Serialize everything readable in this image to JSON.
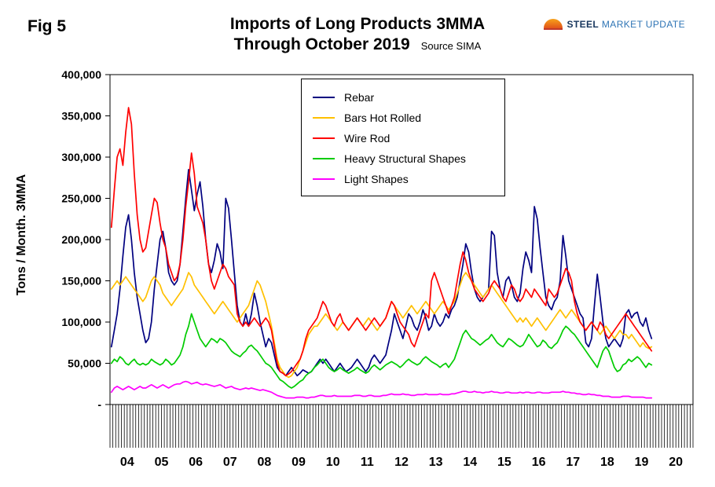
{
  "figure_label": "Fig 5",
  "header": {
    "title_line1": "Imports of Long Products 3MMA",
    "title_line2": "Through October 2019",
    "source": "Source SIMA"
  },
  "logo": {
    "steel": "STEEL",
    "rest": "MARKET UPDATE",
    "arc_color": "#e2541a"
  },
  "chart_data": {
    "type": "line",
    "title": "Imports of Long Products 3MMA Through October 2019",
    "ylabel": "Tons / Month. 3MMA",
    "xlabel": "",
    "ylim": [
      0,
      400000
    ],
    "y_tick_step": 50000,
    "y_tick_labels": [
      "-",
      "50,000",
      "100,000",
      "150,000",
      "200,000",
      "250,000",
      "300,000",
      "350,000",
      "400,000"
    ],
    "x_year_labels": [
      "04",
      "05",
      "06",
      "07",
      "08",
      "09",
      "10",
      "11",
      "12",
      "13",
      "14",
      "15",
      "16",
      "17",
      "18",
      "19",
      "20"
    ],
    "x_start": "2004-01",
    "x_end_data": "2019-10",
    "x_axis_months_total": 204,
    "unit_multiplier": 1000,
    "grid": false,
    "legend_position": "top-center",
    "series": [
      {
        "name": "Rebar",
        "color": "#000080",
        "values": [
          70,
          90,
          110,
          140,
          180,
          215,
          230,
          200,
          160,
          130,
          110,
          90,
          75,
          80,
          100,
          140,
          170,
          200,
          210,
          190,
          160,
          150,
          145,
          150,
          170,
          210,
          250,
          285,
          260,
          235,
          255,
          270,
          240,
          200,
          170,
          160,
          175,
          195,
          185,
          165,
          250,
          238,
          200,
          160,
          120,
          100,
          95,
          110,
          95,
          110,
          135,
          120,
          100,
          85,
          70,
          80,
          75,
          60,
          45,
          40,
          38,
          35,
          40,
          45,
          40,
          35,
          38,
          42,
          40,
          38,
          40,
          45,
          50,
          55,
          50,
          55,
          50,
          45,
          40,
          45,
          50,
          45,
          40,
          42,
          45,
          50,
          55,
          50,
          45,
          40,
          45,
          55,
          60,
          55,
          50,
          55,
          60,
          75,
          90,
          110,
          100,
          90,
          80,
          95,
          110,
          105,
          95,
          90,
          100,
          115,
          105,
          90,
          95,
          110,
          100,
          95,
          100,
          110,
          105,
          115,
          120,
          130,
          150,
          170,
          195,
          185,
          160,
          140,
          130,
          125,
          130,
          135,
          140,
          210,
          205,
          160,
          140,
          130,
          150,
          155,
          145,
          130,
          125,
          135,
          165,
          185,
          175,
          160,
          240,
          225,
          190,
          160,
          130,
          120,
          115,
          125,
          130,
          150,
          205,
          180,
          150,
          140,
          130,
          120,
          110,
          105,
          75,
          70,
          80,
          120,
          158,
          130,
          100,
          80,
          70,
          75,
          80,
          75,
          70,
          80,
          110,
          115,
          105,
          110,
          112,
          100,
          95,
          105,
          90,
          80
        ]
      },
      {
        "name": "Bars Hot Rolled",
        "color": "#FFC000",
        "values": [
          140,
          145,
          150,
          145,
          150,
          155,
          150,
          145,
          140,
          135,
          130,
          125,
          130,
          140,
          150,
          155,
          150,
          145,
          135,
          130,
          125,
          120,
          125,
          130,
          135,
          140,
          150,
          160,
          155,
          145,
          140,
          135,
          130,
          125,
          120,
          115,
          110,
          115,
          120,
          125,
          120,
          115,
          110,
          105,
          100,
          105,
          110,
          115,
          120,
          130,
          140,
          150,
          145,
          135,
          125,
          110,
          95,
          75,
          55,
          45,
          40,
          35,
          33,
          35,
          40,
          45,
          55,
          65,
          75,
          85,
          90,
          95,
          95,
          100,
          105,
          110,
          105,
          100,
          95,
          90,
          95,
          100,
          95,
          90,
          95,
          100,
          105,
          100,
          95,
          100,
          105,
          100,
          95,
          90,
          95,
          100,
          105,
          115,
          125,
          120,
          115,
          110,
          105,
          110,
          115,
          120,
          115,
          110,
          115,
          120,
          125,
          120,
          115,
          110,
          115,
          120,
          125,
          120,
          115,
          120,
          125,
          135,
          145,
          155,
          160,
          155,
          150,
          145,
          140,
          135,
          130,
          135,
          140,
          145,
          140,
          135,
          130,
          125,
          120,
          115,
          110,
          105,
          100,
          105,
          100,
          105,
          100,
          95,
          100,
          105,
          100,
          95,
          90,
          95,
          100,
          105,
          110,
          115,
          110,
          105,
          110,
          115,
          110,
          105,
          100,
          95,
          90,
          95,
          100,
          95,
          90,
          85,
          90,
          95,
          90,
          85,
          80,
          85,
          90,
          85,
          85,
          80,
          85,
          80,
          75,
          70,
          75,
          70,
          68,
          70
        ]
      },
      {
        "name": "Wire Rod",
        "color": "#FF0000",
        "values": [
          215,
          260,
          300,
          310,
          290,
          330,
          360,
          340,
          280,
          230,
          200,
          185,
          190,
          210,
          230,
          250,
          245,
          220,
          200,
          190,
          170,
          160,
          150,
          155,
          170,
          200,
          240,
          270,
          305,
          280,
          240,
          230,
          220,
          200,
          170,
          150,
          140,
          150,
          160,
          170,
          165,
          155,
          150,
          145,
          110,
          100,
          95,
          100,
          95,
          100,
          105,
          100,
          95,
          100,
          105,
          100,
          90,
          70,
          50,
          40,
          38,
          35,
          37,
          40,
          45,
          50,
          55,
          65,
          80,
          90,
          95,
          100,
          105,
          115,
          125,
          120,
          110,
          100,
          95,
          105,
          110,
          100,
          95,
          90,
          95,
          100,
          105,
          100,
          95,
          90,
          95,
          100,
          105,
          100,
          95,
          100,
          105,
          115,
          125,
          120,
          110,
          100,
          95,
          90,
          85,
          75,
          70,
          80,
          90,
          100,
          110,
          105,
          150,
          160,
          150,
          140,
          130,
          120,
          110,
          120,
          130,
          150,
          170,
          185,
          175,
          160,
          150,
          140,
          135,
          130,
          125,
          130,
          135,
          145,
          150,
          145,
          140,
          130,
          125,
          135,
          145,
          140,
          130,
          125,
          130,
          140,
          135,
          130,
          140,
          135,
          130,
          125,
          120,
          140,
          135,
          130,
          135,
          145,
          155,
          165,
          160,
          150,
          125,
          110,
          100,
          95,
          90,
          95,
          100,
          95,
          90,
          100,
          95,
          85,
          80,
          85,
          90,
          95,
          100,
          105,
          110,
          105,
          100,
          95,
          90,
          85,
          80,
          75,
          70,
          65
        ]
      },
      {
        "name": "Heavy Structural Shapes",
        "color": "#00CC00",
        "values": [
          50,
          55,
          52,
          58,
          55,
          50,
          48,
          52,
          55,
          50,
          48,
          50,
          48,
          50,
          55,
          52,
          50,
          48,
          50,
          55,
          52,
          48,
          50,
          55,
          60,
          70,
          85,
          95,
          110,
          100,
          90,
          80,
          75,
          70,
          75,
          80,
          78,
          75,
          80,
          78,
          75,
          70,
          65,
          62,
          60,
          58,
          62,
          65,
          70,
          72,
          68,
          65,
          60,
          55,
          50,
          48,
          45,
          40,
          35,
          30,
          28,
          25,
          22,
          20,
          22,
          25,
          28,
          30,
          35,
          38,
          40,
          45,
          48,
          52,
          55,
          50,
          45,
          42,
          40,
          42,
          45,
          42,
          40,
          38,
          40,
          42,
          45,
          42,
          40,
          38,
          40,
          45,
          48,
          45,
          42,
          45,
          48,
          50,
          52,
          50,
          48,
          45,
          48,
          52,
          55,
          52,
          50,
          48,
          50,
          55,
          58,
          55,
          52,
          50,
          48,
          45,
          48,
          50,
          45,
          50,
          55,
          65,
          75,
          85,
          90,
          85,
          80,
          78,
          75,
          72,
          75,
          78,
          80,
          85,
          80,
          75,
          72,
          70,
          75,
          80,
          78,
          75,
          72,
          70,
          72,
          78,
          85,
          80,
          75,
          70,
          72,
          78,
          75,
          70,
          68,
          72,
          75,
          82,
          90,
          95,
          92,
          88,
          85,
          80,
          75,
          70,
          65,
          60,
          55,
          50,
          45,
          55,
          65,
          70,
          65,
          55,
          45,
          40,
          42,
          48,
          50,
          55,
          52,
          55,
          58,
          55,
          50,
          45,
          50,
          48
        ]
      },
      {
        "name": "Light Shapes",
        "color": "#FF00FF",
        "values": [
          15,
          20,
          22,
          20,
          18,
          20,
          22,
          20,
          18,
          20,
          22,
          20,
          20,
          22,
          24,
          22,
          20,
          22,
          24,
          22,
          20,
          22,
          24,
          25,
          25,
          27,
          28,
          27,
          25,
          26,
          27,
          25,
          24,
          25,
          24,
          23,
          22,
          23,
          24,
          22,
          20,
          21,
          22,
          20,
          19,
          18,
          19,
          20,
          19,
          20,
          19,
          18,
          17,
          18,
          17,
          16,
          15,
          13,
          11,
          10,
          9,
          8,
          8,
          8,
          8,
          9,
          9,
          9,
          8,
          8,
          9,
          9,
          10,
          11,
          11,
          10,
          10,
          10,
          11,
          10,
          10,
          10,
          10,
          10,
          10,
          11,
          11,
          11,
          10,
          10,
          11,
          11,
          10,
          10,
          10,
          11,
          11,
          12,
          13,
          12,
          12,
          12,
          13,
          12,
          12,
          11,
          11,
          12,
          12,
          12,
          13,
          12,
          12,
          12,
          12,
          13,
          12,
          12,
          12,
          13,
          13,
          14,
          15,
          16,
          16,
          15,
          15,
          16,
          15,
          15,
          14,
          15,
          15,
          16,
          15,
          15,
          14,
          14,
          15,
          15,
          14,
          14,
          14,
          15,
          14,
          15,
          15,
          14,
          14,
          15,
          15,
          14,
          14,
          14,
          15,
          15,
          15,
          15,
          16,
          15,
          15,
          14,
          14,
          13,
          13,
          12,
          12,
          13,
          12,
          12,
          11,
          11,
          10,
          10,
          10,
          9,
          9,
          9,
          9,
          10,
          10,
          10,
          9,
          9,
          9,
          9,
          9,
          8,
          8,
          8
        ]
      }
    ]
  }
}
